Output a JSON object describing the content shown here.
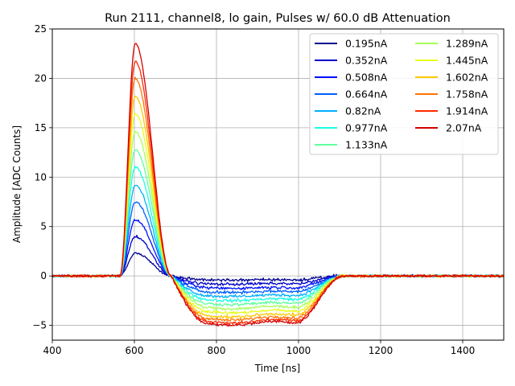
{
  "chart_data": {
    "type": "line",
    "title": "Run 2111, channel8, lo gain, Pulses w/ 60.0 dB Attenuation",
    "xlabel": "Time [ns]",
    "ylabel": "Amplitude [ADC Counts]",
    "xlim": [
      400,
      1500
    ],
    "ylim": [
      -6.5,
      25
    ],
    "xticks": [
      400,
      600,
      800,
      1000,
      1200,
      1400
    ],
    "yticks": [
      -5,
      0,
      5,
      10,
      15,
      20,
      25
    ],
    "grid": true,
    "legend": {
      "placement": "top-right",
      "columns": 2
    },
    "pulse_shape": {
      "baseline_end_ns": 565,
      "peak_time_ns": 602,
      "zero_cross_ns": 690,
      "undershoot_plateau_start_ns": 780,
      "undershoot_plateau_end_ns": 990,
      "recovery_end_ns": 1110
    },
    "series": [
      {
        "name": "0.195nA",
        "color": "#00008f",
        "peak": 2.3,
        "undershoot": -0.4
      },
      {
        "name": "0.352nA",
        "color": "#0000c8",
        "peak": 4.0,
        "undershoot": -0.8
      },
      {
        "name": "0.508nA",
        "color": "#0010ff",
        "peak": 5.7,
        "undershoot": -1.2
      },
      {
        "name": "0.664nA",
        "color": "#0060ff",
        "peak": 7.5,
        "undershoot": -1.6
      },
      {
        "name": "0.82nA",
        "color": "#00b0ff",
        "peak": 9.2,
        "undershoot": -2.0
      },
      {
        "name": "0.977nA",
        "color": "#19ffe6",
        "peak": 11.0,
        "undershoot": -2.4
      },
      {
        "name": "1.133nA",
        "color": "#60ff9f",
        "peak": 12.8,
        "undershoot": -2.8
      },
      {
        "name": "1.289nA",
        "color": "#a6ff59",
        "peak": 14.6,
        "undershoot": -3.2
      },
      {
        "name": "1.445nA",
        "color": "#e6ff19",
        "peak": 16.4,
        "undershoot": -3.6
      },
      {
        "name": "1.602nA",
        "color": "#ffc800",
        "peak": 18.2,
        "undershoot": -4.0
      },
      {
        "name": "1.758nA",
        "color": "#ff7300",
        "peak": 20.0,
        "undershoot": -4.3
      },
      {
        "name": "1.914nA",
        "color": "#ff2a00",
        "peak": 21.7,
        "undershoot": -4.6
      },
      {
        "name": "2.07nA",
        "color": "#d40000",
        "peak": 23.5,
        "undershoot": -4.8
      }
    ]
  }
}
